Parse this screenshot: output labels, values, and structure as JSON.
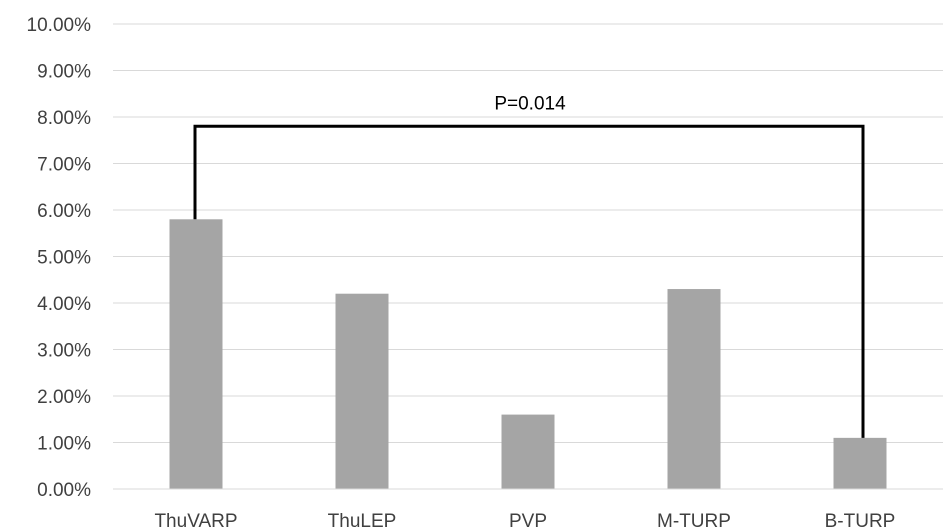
{
  "chart_data": {
    "type": "bar",
    "categories": [
      "ThuVARP",
      "ThuLEP",
      "PVP",
      "M-TURP",
      "B-TURP"
    ],
    "values": [
      0.058,
      0.042,
      0.016,
      0.043,
      0.011
    ],
    "title": "",
    "xlabel": "",
    "ylabel": "",
    "ylim": [
      0,
      0.1
    ],
    "y_ticks": [
      "0.00%",
      "1.00%",
      "2.00%",
      "3.00%",
      "4.00%",
      "5.00%",
      "6.00%",
      "7.00%",
      "8.00%",
      "9.00%",
      "10.00%"
    ],
    "grid": true,
    "legend": "none",
    "bar_color": "#a5a5a5",
    "annotation": {
      "label": "P=0.014",
      "from": "ThuVARP",
      "to": "B-TURP",
      "level": 0.078
    }
  }
}
